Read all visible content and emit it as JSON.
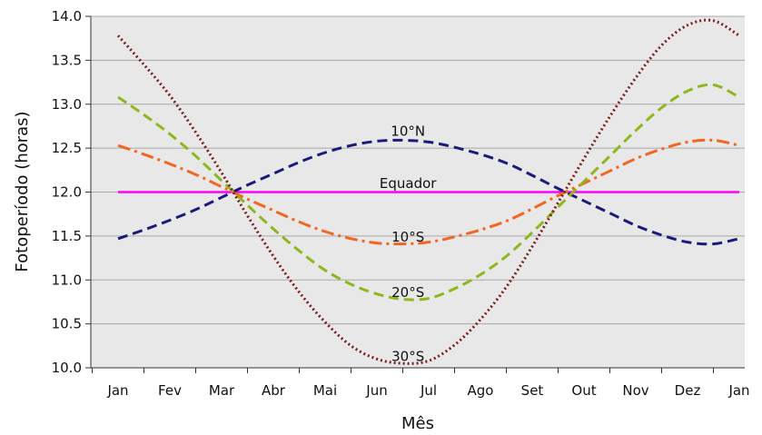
{
  "chart_data": {
    "type": "line",
    "xlabel": "Mês",
    "ylabel": "Fotoperíodo (horas)",
    "x_tick_labels": [
      "Jan",
      "Fev",
      "Mar",
      "Abr",
      "Mai",
      "Jun",
      "Jul",
      "Ago",
      "Set",
      "Out",
      "Nov",
      "Dez",
      "Jan"
    ],
    "ylim": [
      10.0,
      14.0
    ],
    "y_ticks": [
      "10.0",
      "10.5",
      "11.0",
      "11.5",
      "12.0",
      "12.5",
      "13.0",
      "13.5",
      "14.0"
    ],
    "grid": true,
    "series": [
      {
        "name": "Equador",
        "color": "#ff00ff",
        "style": "solid",
        "x": [
          0,
          12
        ],
        "values": [
          12.0,
          12.0
        ]
      },
      {
        "name": "10°N",
        "color": "#1a1a7a",
        "style": "dashed",
        "x": [
          0,
          0.5,
          1,
          1.5,
          2,
          2.5,
          3,
          3.5,
          4,
          4.5,
          5,
          5.5,
          6,
          6.5,
          7,
          7.5,
          8,
          8.5,
          9,
          9.5,
          10,
          10.5,
          11,
          11.5,
          12
        ],
        "values": [
          11.47,
          11.57,
          11.68,
          11.8,
          11.94,
          12.08,
          12.21,
          12.34,
          12.45,
          12.53,
          12.58,
          12.59,
          12.57,
          12.51,
          12.43,
          12.33,
          12.19,
          12.04,
          11.9,
          11.76,
          11.62,
          11.51,
          11.43,
          11.41,
          11.47
        ]
      },
      {
        "name": "10°S",
        "color": "#f26522",
        "style": "dashdot",
        "x": [
          0,
          0.5,
          1,
          1.5,
          2,
          2.5,
          3,
          3.5,
          4,
          4.5,
          5,
          5.5,
          6,
          6.5,
          7,
          7.5,
          8,
          8.5,
          9,
          9.5,
          10,
          10.5,
          11,
          11.5,
          12
        ],
        "values": [
          12.53,
          12.43,
          12.32,
          12.2,
          12.06,
          11.92,
          11.79,
          11.66,
          11.55,
          11.47,
          11.42,
          11.41,
          11.43,
          11.49,
          11.57,
          11.67,
          11.81,
          11.96,
          12.1,
          12.24,
          12.38,
          12.49,
          12.57,
          12.59,
          12.53
        ]
      },
      {
        "name": "20°S",
        "color": "#8db71d",
        "style": "dashed",
        "x": [
          0,
          0.5,
          1,
          1.5,
          2,
          2.5,
          3,
          3.5,
          4,
          4.5,
          5,
          5.5,
          6,
          6.5,
          7,
          7.5,
          8,
          8.5,
          9,
          9.5,
          10,
          10.5,
          11,
          11.5,
          12
        ],
        "values": [
          13.08,
          12.88,
          12.66,
          12.41,
          12.13,
          11.85,
          11.58,
          11.33,
          11.11,
          10.95,
          10.84,
          10.78,
          10.79,
          10.9,
          11.06,
          11.27,
          11.54,
          11.83,
          12.12,
          12.41,
          12.7,
          12.96,
          13.15,
          13.22,
          13.08
        ]
      },
      {
        "name": "30°S",
        "color": "#7a1f1f",
        "style": "dotted",
        "x": [
          0,
          0.5,
          1,
          1.5,
          2,
          2.5,
          3,
          3.5,
          4,
          4.5,
          5,
          5.5,
          6,
          6.5,
          7,
          7.5,
          8,
          8.5,
          9,
          9.5,
          10,
          10.5,
          11,
          11.5,
          12
        ],
        "values": [
          13.78,
          13.45,
          13.1,
          12.68,
          12.22,
          11.73,
          11.27,
          10.86,
          10.52,
          10.25,
          10.1,
          10.05,
          10.08,
          10.26,
          10.55,
          10.92,
          11.38,
          11.88,
          12.38,
          12.86,
          13.3,
          13.67,
          13.9,
          13.95,
          13.78
        ]
      }
    ],
    "annotations": [
      {
        "text": "10°N",
        "x": 5.6,
        "y": 12.69
      },
      {
        "text": "Equador",
        "x": 5.6,
        "y": 12.1
      },
      {
        "text": "10°S",
        "x": 5.6,
        "y": 11.49
      },
      {
        "text": "20°S",
        "x": 5.6,
        "y": 10.86
      },
      {
        "text": "30°S",
        "x": 5.6,
        "y": 10.13
      }
    ]
  }
}
